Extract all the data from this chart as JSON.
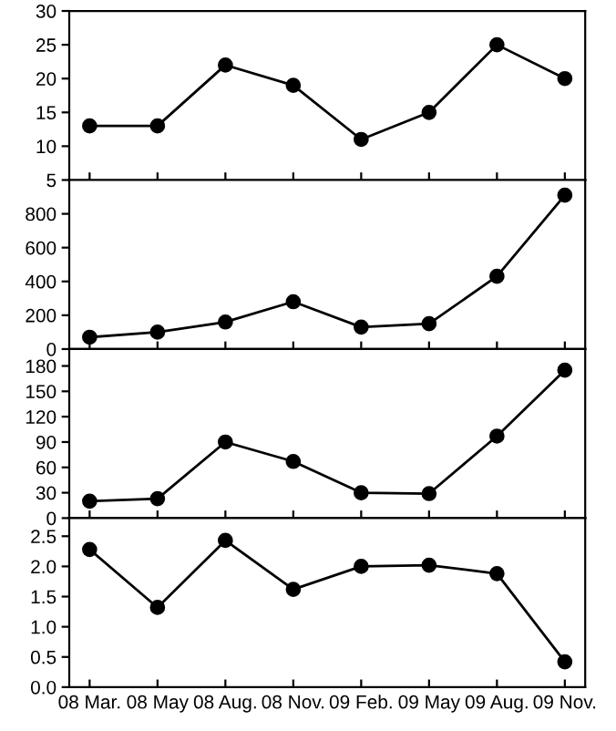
{
  "chart_data": [
    {
      "type": "line",
      "categories": [
        null,
        null,
        null,
        null,
        null,
        null,
        null,
        null
      ],
      "series": [
        {
          "color": "#000000",
          "values": [
            13,
            13,
            22,
            19,
            11,
            15,
            25,
            20
          ]
        }
      ],
      "ylim": [
        5,
        30
      ],
      "yticks": [
        5,
        10,
        15,
        20,
        25,
        30
      ],
      "marker": "circle",
      "tick_labels": "y",
      "grid": false,
      "legend": false
    },
    {
      "type": "line",
      "categories": [
        null,
        null,
        null,
        null,
        null,
        null,
        null,
        null
      ],
      "series": [
        {
          "color": "#000000",
          "values": [
            70,
            100,
            160,
            280,
            130,
            150,
            430,
            910
          ]
        }
      ],
      "ylim": [
        0,
        1000
      ],
      "yticks": [
        0,
        200,
        400,
        600,
        800
      ],
      "marker": "circle",
      "tick_labels": "y",
      "grid": false,
      "legend": false
    },
    {
      "type": "line",
      "categories": [
        null,
        null,
        null,
        null,
        null,
        null,
        null,
        null
      ],
      "series": [
        {
          "color": "#000000",
          "values": [
            20,
            23,
            90,
            67,
            30,
            29,
            97,
            175
          ]
        }
      ],
      "ylim": [
        0,
        200
      ],
      "yticks": [
        0,
        30,
        60,
        90,
        120,
        150,
        180
      ],
      "marker": "circle",
      "tick_labels": "y",
      "grid": false,
      "legend": false
    },
    {
      "type": "line",
      "categories": [
        "08 Mar.",
        "08 May",
        "08 Aug.",
        "08 Nov.",
        "09 Feb.",
        "09 May",
        "09 Aug.",
        "09 Nov."
      ],
      "series": [
        {
          "color": "#000000",
          "values": [
            2.28,
            1.32,
            2.43,
            1.62,
            2.0,
            2.02,
            1.88,
            0.42
          ]
        }
      ],
      "ylim": [
        0,
        2.8
      ],
      "yticks": [
        {
          "value": 0,
          "label": "0.0"
        },
        {
          "value": 0.5,
          "label": "0.5"
        },
        {
          "value": 1,
          "label": "1.0"
        },
        {
          "value": 1.5,
          "label": "1.5"
        },
        {
          "value": 2,
          "label": "2.0"
        },
        {
          "value": 2.5,
          "label": "2.5"
        }
      ],
      "marker": "circle",
      "grid": false,
      "legend": false
    }
  ]
}
